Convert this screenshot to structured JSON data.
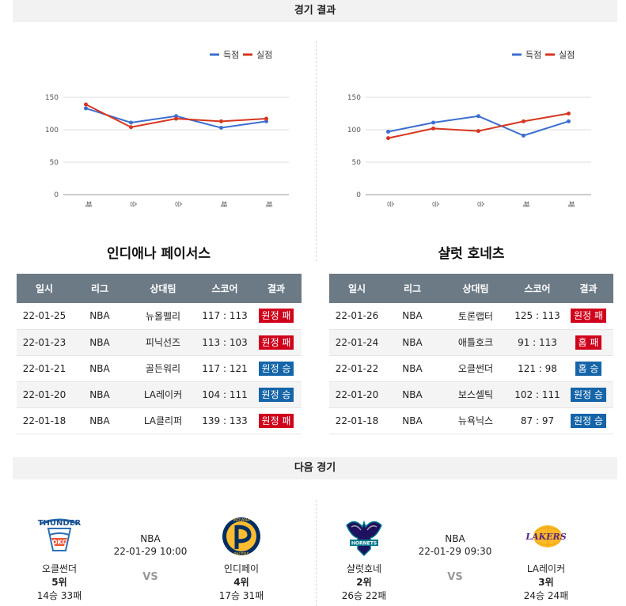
{
  "sections": {
    "results_title": "경기 결과",
    "next_title": "다음 경기"
  },
  "legend": {
    "scored": "득점",
    "allowed": "실점"
  },
  "colors": {
    "scored": "#3c6fd1",
    "allowed": "#d6361f",
    "win": "#1565a8",
    "loss": "#d0021b",
    "header": "#6c7a86"
  },
  "chart_data": [
    {
      "type": "line",
      "categories": [
        "패",
        "승",
        "승",
        "패",
        "패"
      ],
      "y_ticks": [
        0,
        50,
        100,
        150
      ],
      "ylim": [
        0,
        150
      ],
      "grid": true,
      "legend_position": "top-right",
      "series": [
        {
          "name": "득점",
          "values": [
            133,
            111,
            121,
            103,
            113
          ]
        },
        {
          "name": "실점",
          "values": [
            139,
            104,
            117,
            113,
            117
          ]
        }
      ]
    },
    {
      "type": "line",
      "categories": [
        "승",
        "승",
        "승",
        "패",
        "패"
      ],
      "y_ticks": [
        0,
        50,
        100,
        150
      ],
      "ylim": [
        0,
        150
      ],
      "grid": true,
      "legend_position": "top-right",
      "series": [
        {
          "name": "득점",
          "values": [
            97,
            111,
            121,
            91,
            113
          ]
        },
        {
          "name": "실점",
          "values": [
            87,
            102,
            98,
            113,
            125
          ]
        }
      ]
    }
  ],
  "columns": [
    "일시",
    "리그",
    "상대팀",
    "스코어",
    "결과"
  ],
  "teams": [
    {
      "name": "인디애나 페이서스",
      "games": [
        {
          "date": "22-01-25",
          "league": "NBA",
          "opponent": "뉴올펠리",
          "score": "117 : 113",
          "result": "원정 패",
          "type": "loss"
        },
        {
          "date": "22-01-23",
          "league": "NBA",
          "opponent": "피닉선즈",
          "score": "113 : 103",
          "result": "원정 패",
          "type": "loss"
        },
        {
          "date": "22-01-21",
          "league": "NBA",
          "opponent": "골든워리",
          "score": "117 : 121",
          "result": "원정 승",
          "type": "win"
        },
        {
          "date": "22-01-20",
          "league": "NBA",
          "opponent": "LA레이커",
          "score": "104 : 111",
          "result": "원정 승",
          "type": "win"
        },
        {
          "date": "22-01-18",
          "league": "NBA",
          "opponent": "LA클리퍼",
          "score": "139 : 133",
          "result": "원정 패",
          "type": "loss"
        }
      ]
    },
    {
      "name": "샬럿 호네츠",
      "games": [
        {
          "date": "22-01-26",
          "league": "NBA",
          "opponent": "토론랩터",
          "score": "125 : 113",
          "result": "원정 패",
          "type": "loss"
        },
        {
          "date": "22-01-24",
          "league": "NBA",
          "opponent": "애틀호크",
          "score": "91 : 113",
          "result": "홈 패",
          "type": "loss"
        },
        {
          "date": "22-01-22",
          "league": "NBA",
          "opponent": "오클썬더",
          "score": "121 : 98",
          "result": "홈 승",
          "type": "win"
        },
        {
          "date": "22-01-20",
          "league": "NBA",
          "opponent": "보스셀틱",
          "score": "102 : 111",
          "result": "원정 승",
          "type": "win"
        },
        {
          "date": "22-01-18",
          "league": "NBA",
          "opponent": "뉴욕닉스",
          "score": "87 : 97",
          "result": "원정 승",
          "type": "win"
        }
      ]
    }
  ],
  "next_games": [
    {
      "league": "NBA",
      "time": "22-01-29 10:00",
      "vs": "VS",
      "away": {
        "name": "오클썬더",
        "rank": "5위",
        "record": "14승 33패",
        "logo": "thunder-logo"
      },
      "home": {
        "name": "인디페이",
        "rank": "4위",
        "record": "17승 31패",
        "logo": "pacers-logo"
      }
    },
    {
      "league": "NBA",
      "time": "22-01-29 09:30",
      "vs": "VS",
      "away": {
        "name": "샬럿호네",
        "rank": "2위",
        "record": "26승 22패",
        "logo": "hornets-logo"
      },
      "home": {
        "name": "LA레이커",
        "rank": "3위",
        "record": "24승 24패",
        "logo": "lakers-logo"
      }
    }
  ]
}
